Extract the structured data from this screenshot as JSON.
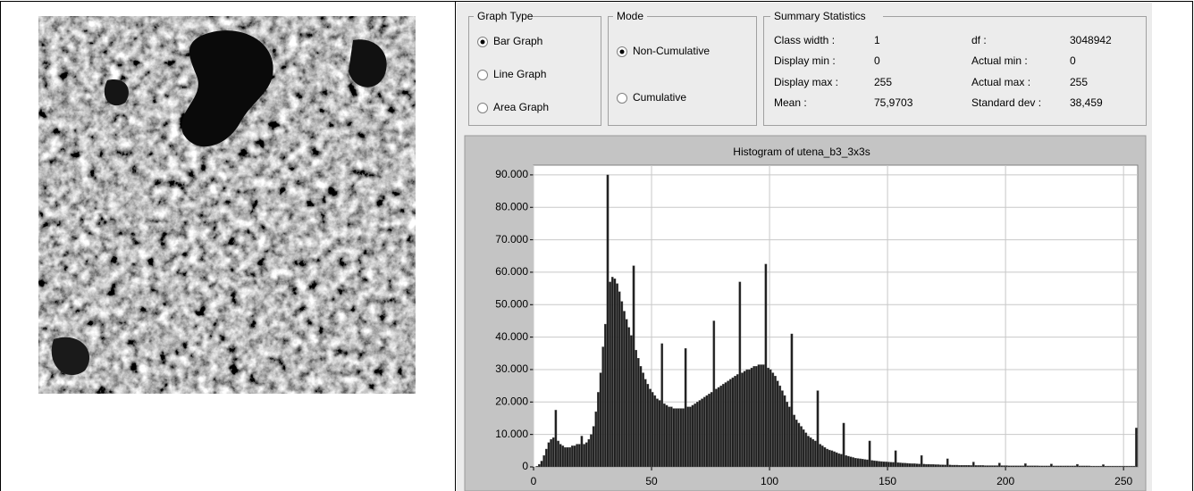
{
  "graph_type": {
    "title": "Graph Type",
    "options": [
      {
        "label": "Bar Graph",
        "checked": true
      },
      {
        "label": "Line Graph",
        "checked": false
      },
      {
        "label": "Area Graph",
        "checked": false
      }
    ]
  },
  "mode": {
    "title": "Mode",
    "options": [
      {
        "label": "Non-Cumulative",
        "checked": true
      },
      {
        "label": "Cumulative",
        "checked": false
      }
    ]
  },
  "summary": {
    "title": "Summary Statistics",
    "rows": [
      [
        "Class width :",
        "1",
        "df :",
        "3048942"
      ],
      [
        "Display min :",
        "0",
        "Actual min :",
        "0"
      ],
      [
        "Display max :",
        "255",
        "Actual max :",
        "255"
      ],
      [
        "Mean :",
        "75,9703",
        "Standard dev :",
        "38,459"
      ]
    ]
  },
  "chart_data": {
    "type": "bar",
    "title": "Histogram of utena_b3_3x3s",
    "color": "#1e1e1e",
    "grid": true,
    "xlim": [
      0,
      256
    ],
    "xticks": [
      0,
      50,
      100,
      150,
      200,
      250
    ],
    "ylim": [
      0,
      93000
    ],
    "yticks": [
      0,
      {
        "value": 10000,
        "label": "10.000"
      },
      {
        "value": 20000,
        "label": "20.000"
      },
      {
        "value": 30000,
        "label": "30.000"
      },
      {
        "value": 40000,
        "label": "40.000"
      },
      {
        "value": 50000,
        "label": "50.000"
      },
      {
        "value": 60000,
        "label": "60.000"
      },
      {
        "value": 70000,
        "label": "70.000"
      },
      {
        "value": 80000,
        "label": "80.000"
      },
      {
        "value": 90000,
        "label": "90.000"
      }
    ],
    "x": [
      0,
      1,
      2,
      3,
      4,
      5,
      6,
      7,
      8,
      9,
      10,
      11,
      12,
      13,
      14,
      15,
      16,
      17,
      18,
      19,
      20,
      21,
      22,
      23,
      24,
      25,
      26,
      27,
      28,
      29,
      30,
      31,
      32,
      33,
      34,
      35,
      36,
      37,
      38,
      39,
      40,
      41,
      42,
      43,
      44,
      45,
      46,
      47,
      48,
      49,
      50,
      51,
      52,
      53,
      54,
      55,
      56,
      57,
      58,
      59,
      60,
      61,
      62,
      63,
      64,
      65,
      66,
      67,
      68,
      69,
      70,
      71,
      72,
      73,
      74,
      75,
      76,
      77,
      78,
      79,
      80,
      81,
      82,
      83,
      84,
      85,
      86,
      87,
      88,
      89,
      90,
      91,
      92,
      93,
      94,
      95,
      96,
      97,
      98,
      99,
      100,
      101,
      102,
      103,
      104,
      105,
      106,
      107,
      108,
      109,
      110,
      111,
      112,
      113,
      114,
      115,
      116,
      117,
      118,
      119,
      120,
      121,
      122,
      123,
      124,
      125,
      126,
      127,
      128,
      129,
      130,
      131,
      132,
      133,
      134,
      135,
      136,
      137,
      138,
      139,
      140,
      141,
      142,
      143,
      144,
      145,
      146,
      147,
      148,
      149,
      150,
      151,
      152,
      153,
      154,
      155,
      156,
      157,
      158,
      159,
      160,
      161,
      162,
      163,
      164,
      165,
      166,
      167,
      168,
      169,
      170,
      171,
      172,
      173,
      174,
      175,
      176,
      177,
      178,
      179,
      180,
      181,
      182,
      183,
      184,
      185,
      186,
      187,
      188,
      189,
      190,
      191,
      192,
      193,
      194,
      195,
      196,
      197,
      198,
      199,
      200,
      201,
      202,
      203,
      204,
      205,
      206,
      207,
      208,
      209,
      210,
      211,
      212,
      213,
      214,
      215,
      216,
      217,
      218,
      219,
      220,
      221,
      222,
      223,
      224,
      225,
      226,
      227,
      228,
      229,
      230,
      231,
      232,
      233,
      234,
      235,
      236,
      237,
      238,
      239,
      240,
      241,
      242,
      243,
      244,
      245,
      246,
      247,
      248,
      249,
      250,
      251,
      252,
      253,
      254,
      255
    ],
    "values": [
      0,
      200,
      800,
      1800,
      3500,
      5500,
      7500,
      8500,
      9000,
      17500,
      8000,
      7000,
      6500,
      6000,
      6000,
      6000,
      6500,
      6500,
      7000,
      7000,
      9500,
      7000,
      7500,
      8500,
      10000,
      12500,
      17000,
      23000,
      29000,
      37000,
      44000,
      90000,
      57000,
      58500,
      58000,
      56500,
      54000,
      51000,
      48000,
      45500,
      43000,
      40500,
      62000,
      36000,
      33500,
      31000,
      29000,
      27000,
      25500,
      24000,
      23000,
      22000,
      21000,
      20500,
      38000,
      19500,
      19000,
      18500,
      18500,
      18000,
      18000,
      18000,
      18000,
      18000,
      36500,
      18500,
      18500,
      19000,
      19500,
      20000,
      20500,
      21000,
      21500,
      22000,
      22500,
      23000,
      45000,
      24000,
      24500,
      25000,
      25500,
      26000,
      26500,
      27000,
      27500,
      28000,
      28500,
      57000,
      29000,
      29500,
      30000,
      30000,
      30500,
      31000,
      31000,
      31500,
      31500,
      31500,
      62500,
      30500,
      30000,
      29000,
      28000,
      26500,
      25000,
      23500,
      22000,
      20000,
      18500,
      41000,
      16000,
      14500,
      13500,
      12500,
      11500,
      10500,
      9500,
      9000,
      8500,
      8000,
      23500,
      7000,
      6500,
      6000,
      5500,
      5200,
      5000,
      4700,
      4400,
      4100,
      3900,
      13500,
      3500,
      3300,
      3100,
      2900,
      2700,
      2600,
      2500,
      2400,
      2300,
      2200,
      8000,
      2000,
      1900,
      1800,
      1700,
      1650,
      1600,
      1550,
      1500,
      1450,
      1400,
      5000,
      1300,
      1250,
      1200,
      1150,
      1100,
      1050,
      1000,
      1000,
      950,
      900,
      3500,
      850,
      800,
      800,
      750,
      750,
      700,
      700,
      650,
      650,
      600,
      2500,
      600,
      550,
      550,
      550,
      500,
      500,
      500,
      500,
      500,
      450,
      1500,
      450,
      450,
      450,
      450,
      400,
      400,
      400,
      400,
      400,
      400,
      1200,
      400,
      400,
      400,
      350,
      350,
      350,
      350,
      350,
      350,
      350,
      1000,
      350,
      350,
      350,
      350,
      350,
      300,
      300,
      300,
      300,
      300,
      900,
      300,
      300,
      300,
      300,
      300,
      300,
      300,
      300,
      300,
      300,
      800,
      300,
      300,
      300,
      300,
      300,
      250,
      250,
      250,
      250,
      250,
      700,
      250,
      250,
      250,
      250,
      250,
      250,
      250,
      250,
      250,
      250,
      250,
      250,
      250,
      12000
    ]
  }
}
